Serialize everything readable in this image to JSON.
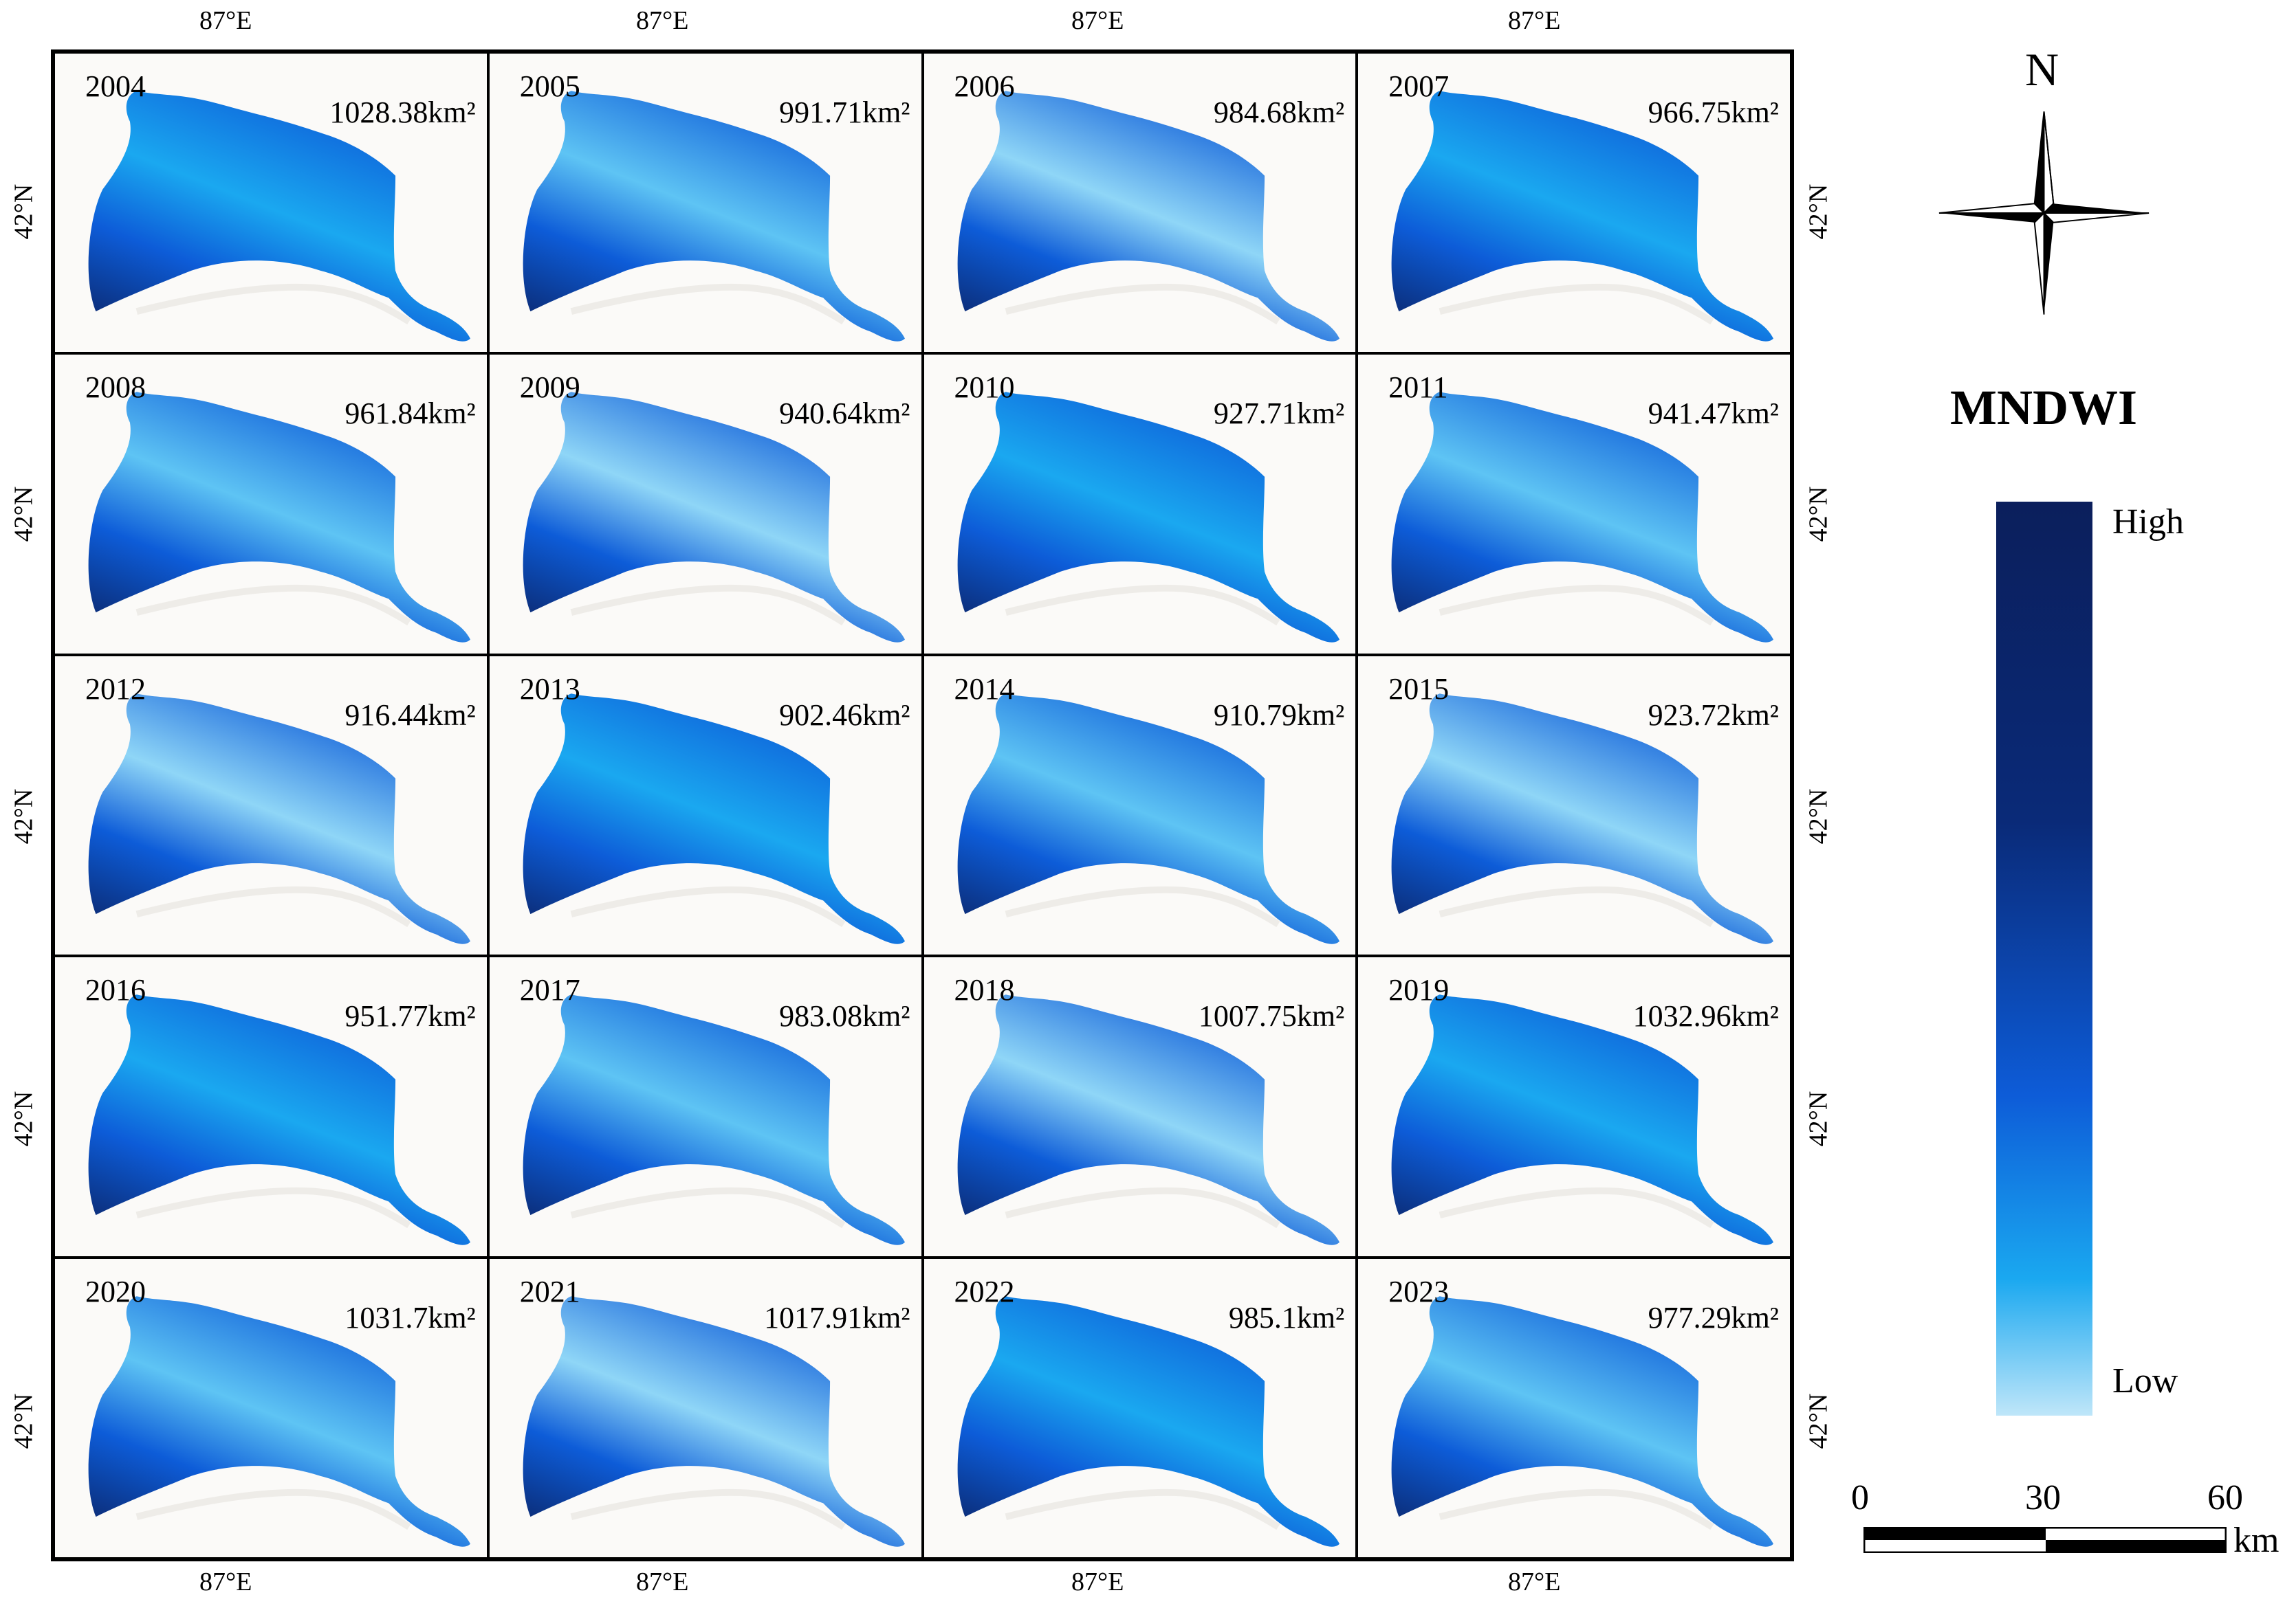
{
  "panels": [
    {
      "year": "2004",
      "area": "1028.38km²"
    },
    {
      "year": "2005",
      "area": "991.71km²"
    },
    {
      "year": "2006",
      "area": "984.68km²"
    },
    {
      "year": "2007",
      "area": "966.75km²"
    },
    {
      "year": "2008",
      "area": "961.84km²"
    },
    {
      "year": "2009",
      "area": "940.64km²"
    },
    {
      "year": "2010",
      "area": "927.71km²"
    },
    {
      "year": "2011",
      "area": "941.47km²"
    },
    {
      "year": "2012",
      "area": "916.44km²"
    },
    {
      "year": "2013",
      "area": "902.46km²"
    },
    {
      "year": "2014",
      "area": "910.79km²"
    },
    {
      "year": "2015",
      "area": "923.72km²"
    },
    {
      "year": "2016",
      "area": "951.77km²"
    },
    {
      "year": "2017",
      "area": "983.08km²"
    },
    {
      "year": "2018",
      "area": "1007.75km²"
    },
    {
      "year": "2019",
      "area": "1032.96km²"
    },
    {
      "year": "2020",
      "area": "1031.7km²"
    },
    {
      "year": "2021",
      "area": "1017.91km²"
    },
    {
      "year": "2022",
      "area": "985.1km²"
    },
    {
      "year": "2023",
      "area": "977.29km²"
    }
  ],
  "axis": {
    "longitude_label": "87°E",
    "latitude_label": "42°N"
  },
  "legend": {
    "title": "MNDWI",
    "high_label": "High",
    "low_label": "Low"
  },
  "north_arrow": {
    "label": "N",
    "icon": "compass-rose-icon"
  },
  "scale_bar": {
    "ticks": [
      "0",
      "30",
      "60"
    ],
    "unit": "km"
  },
  "colors": {
    "water_deep": "#0b1f5c",
    "water_mid": "#0d5cd8",
    "water_light": "#1aa8f0",
    "water_low": "#bfe6f9",
    "land": "#fbfaf8"
  }
}
